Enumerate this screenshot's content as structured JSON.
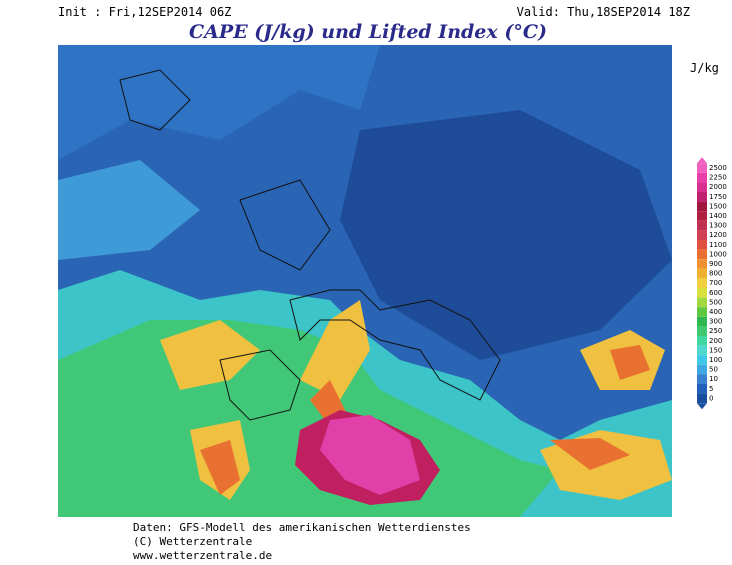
{
  "header": {
    "init": "Init : Fri,12SEP2014 06Z",
    "valid": "Valid: Thu,18SEP2014 18Z",
    "title": "CAPE (J/kg) und Lifted Index (°C)"
  },
  "colorbar": {
    "unit": "J/kg",
    "labels": [
      2500,
      2250,
      2000,
      1750,
      1500,
      1400,
      1300,
      1200,
      1100,
      1000,
      900,
      800,
      700,
      600,
      500,
      400,
      300,
      250,
      200,
      150,
      100,
      50,
      10,
      5,
      0
    ]
  },
  "footer": {
    "lines": [
      "Daten: GFS-Modell des amerikanischen Wetterdienstes",
      "(C) Wetterzentrale",
      "www.wetterzentrale.de"
    ]
  }
}
